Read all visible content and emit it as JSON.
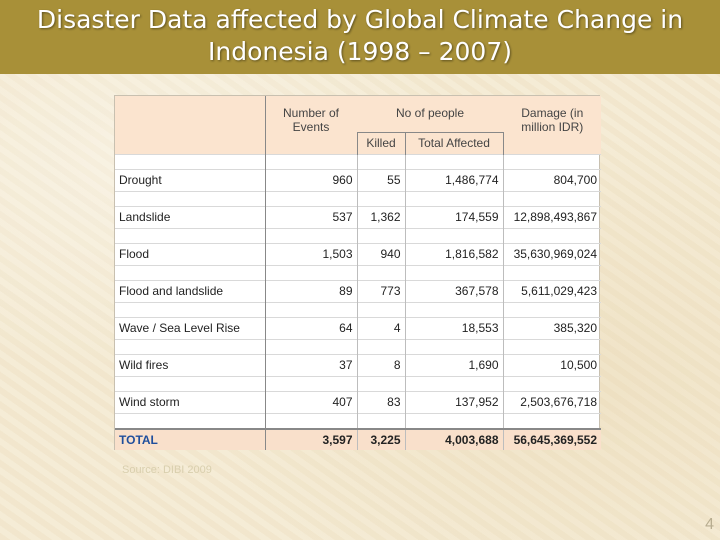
{
  "slide": {
    "title_line1": "Disaster Data affected by Global Climate Change in",
    "title_line2": "Indonesia (1998 – 2007)",
    "source": "Source: DIBI 2009",
    "page_number": "4"
  },
  "table": {
    "headers": {
      "events": "Number of Events",
      "people": "No of people",
      "killed": "Killed",
      "affected": "Total Affected",
      "damage": "Damage (in million IDR)"
    },
    "rows": [
      {
        "name": "Drought",
        "events": "960",
        "killed": "55",
        "affected": "1,486,774",
        "damage": "804,700"
      },
      {
        "name": "Landslide",
        "events": "537",
        "killed": "1,362",
        "affected": "174,559",
        "damage": "12,898,493,867"
      },
      {
        "name": "Flood",
        "events": "1,503",
        "killed": "940",
        "affected": "1,816,582",
        "damage": "35,630,969,024"
      },
      {
        "name": "Flood and landslide",
        "events": "89",
        "killed": "773",
        "affected": "367,578",
        "damage": "5,611,029,423"
      },
      {
        "name": "Wave / Sea Level Rise",
        "events": "64",
        "killed": "4",
        "affected": "18,553",
        "damage": "385,320"
      },
      {
        "name": "Wild fires",
        "events": "37",
        "killed": "8",
        "affected": "1,690",
        "damage": "10,500"
      },
      {
        "name": "Wind storm",
        "events": "407",
        "killed": "83",
        "affected": "137,952",
        "damage": "2,503,676,718"
      }
    ],
    "total": {
      "name": "TOTAL",
      "events": "3,597",
      "killed": "3,225",
      "affected": "4,003,688",
      "damage": "56,645,369,552"
    }
  }
}
